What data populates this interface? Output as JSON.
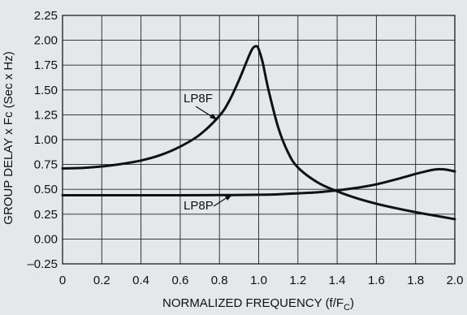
{
  "chart_data": {
    "type": "line",
    "title": "",
    "xlabel": "NORMALIZED FREQUENCY (f/F",
    "xlabel_sub": "C",
    "xlabel_close": ")",
    "ylabel": "GROUP DELAY x Fc (Sec x Hz)",
    "xlim": [
      0,
      2.0
    ],
    "ylim": [
      -0.25,
      2.25
    ],
    "grid": true,
    "x_ticks": [
      0,
      0.2,
      0.4,
      0.6,
      0.8,
      1.0,
      1.2,
      1.4,
      1.6,
      1.8,
      2.0
    ],
    "x_tick_labels": [
      "0",
      "0.2",
      "0.4",
      "0.6",
      "0.8",
      "1.0",
      "1.2",
      "1.4",
      "1.6",
      "1.8",
      "2.0"
    ],
    "y_ticks": [
      -0.25,
      0,
      0.25,
      0.5,
      0.75,
      1.0,
      1.25,
      1.5,
      1.75,
      2.0,
      2.25
    ],
    "y_tick_labels": [
      "–0.25",
      "0.00",
      "0.25",
      "0.50",
      "0.75",
      "1.00",
      "1.25",
      "1.50",
      "1.75",
      "2.00",
      "2.25"
    ],
    "series": [
      {
        "name": "LP8F",
        "x": [
          0,
          0.1,
          0.2,
          0.3,
          0.4,
          0.5,
          0.6,
          0.7,
          0.8,
          0.85,
          0.9,
          0.95,
          0.97,
          0.99,
          1.0,
          1.02,
          1.05,
          1.1,
          1.15,
          1.2,
          1.3,
          1.4,
          1.5,
          1.6,
          1.7,
          1.8,
          1.9,
          2.0
        ],
        "values": [
          0.71,
          0.715,
          0.73,
          0.755,
          0.79,
          0.845,
          0.93,
          1.05,
          1.24,
          1.39,
          1.6,
          1.84,
          1.92,
          1.94,
          1.91,
          1.78,
          1.5,
          1.12,
          0.87,
          0.72,
          0.57,
          0.48,
          0.41,
          0.355,
          0.31,
          0.27,
          0.235,
          0.2
        ]
      },
      {
        "name": "LP8P",
        "x": [
          0,
          0.2,
          0.4,
          0.6,
          0.8,
          1.0,
          1.1,
          1.2,
          1.3,
          1.4,
          1.5,
          1.6,
          1.7,
          1.8,
          1.85,
          1.9,
          1.95,
          2.0
        ],
        "values": [
          0.44,
          0.44,
          0.44,
          0.44,
          0.442,
          0.445,
          0.45,
          0.46,
          0.47,
          0.49,
          0.515,
          0.55,
          0.6,
          0.655,
          0.68,
          0.7,
          0.7,
          0.68
        ]
      }
    ],
    "annotations": [
      "LP8F",
      "LP8P"
    ],
    "colors": {
      "background": "#e6e7e8",
      "line": "#111111",
      "grid": "#222222"
    }
  }
}
